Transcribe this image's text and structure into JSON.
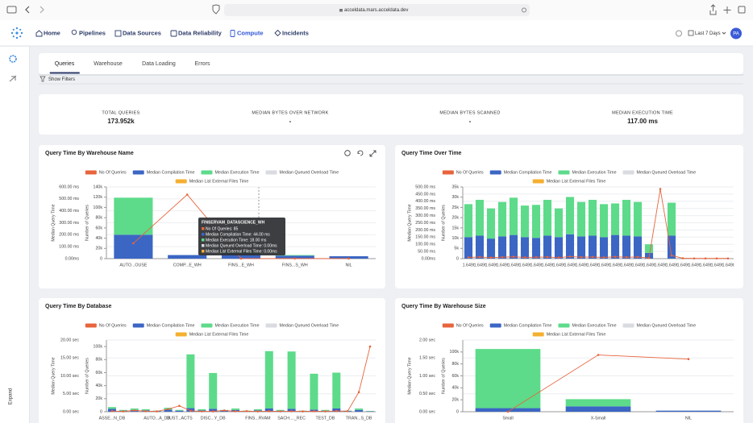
{
  "browser": {
    "url": "acceldata.mars.acceldata.dev"
  },
  "nav": {
    "items": [
      "Home",
      "Pipelines",
      "Data Sources",
      "Data Reliability",
      "Compute",
      "Incidents"
    ],
    "active": 4,
    "date_range": "Last 7 Days",
    "avatar": "PA"
  },
  "sidebar": {
    "expand": "Expand"
  },
  "tabs": {
    "items": [
      "Queries",
      "Warehouse",
      "Data Loading",
      "Errors"
    ],
    "active": 0
  },
  "filters": "Show Filters",
  "kpis": [
    {
      "label": "TOTAL QUERIES",
      "value": "173.952k"
    },
    {
      "label": "MEDIAN BYTES OVER NETWORK",
      "value": "-"
    },
    {
      "label": "MEDIAN BYTES SCANNED",
      "value": "-"
    },
    {
      "label": "MEDIAN EXECUTION TIME",
      "value": "117.00 ms"
    }
  ],
  "charts": [
    {
      "type": "bar",
      "title": "Query Time By Warehouse Name",
      "ylabel": "Median Query Time",
      "y2label": "Number of Queries",
      "categories": [
        "AUTO...OUSE",
        "COMP...E_WH",
        "FINS...E_WH",
        "FINS...S_WH",
        "NIL"
      ],
      "ylim": [
        0,
        600
      ],
      "yticks": [
        {
          "value": 0,
          "label": "0.00ms"
        },
        {
          "value": 100,
          "label": "100.00 ms"
        },
        {
          "value": 200,
          "label": "200.00 ms"
        },
        {
          "value": 300,
          "label": "300.00 ms"
        },
        {
          "value": 400,
          "label": "400.00 ms"
        },
        {
          "value": 500,
          "label": "500.00 ms"
        },
        {
          "value": 600,
          "label": "600.00 ms"
        }
      ],
      "y2lim": [
        0,
        140000
      ],
      "y2ticks": [
        0,
        {
          "value": 20000,
          "label": "20k"
        },
        {
          "value": 40000,
          "label": "40k"
        },
        {
          "value": 60000,
          "label": "60k"
        },
        {
          "value": 80000,
          "label": "80k"
        },
        {
          "value": 100000,
          "label": "100k"
        },
        {
          "value": 120000,
          "label": "120k"
        },
        {
          "value": 140000,
          "label": "140k"
        }
      ],
      "series": [
        {
          "name": "No Of Queries",
          "color": "#e8643c",
          "type": "line",
          "axis": "y2",
          "values": [
            30000,
            125000,
            85,
            200,
            100
          ]
        },
        {
          "name": "Median Compilation Time",
          "color": "#3b66c4",
          "values": [
            200,
            30,
            44,
            25,
            20
          ]
        },
        {
          "name": "Median Execution Time",
          "color": "#5ddb8a",
          "values": [
            310,
            0,
            18,
            5,
            0
          ]
        },
        {
          "name": "Median Queued Overload Time",
          "color": "#d9dbe0",
          "values": [
            0,
            0,
            0,
            0,
            0
          ]
        },
        {
          "name": "Median List External Files Time",
          "color": "#f5b031",
          "values": [
            0,
            0,
            0,
            0,
            0
          ]
        }
      ],
      "tooltip": {
        "title": "FINSERVAM_DATASCIENCE_WH",
        "lines": [
          "No Of Queries: 85",
          "Median Compilation Time: 44.00 ms",
          "Median Execution Time: 18.00 ms",
          "Median Queued Overload Time: 0.00ms",
          "Median List External Files Time: 0.00ms"
        ]
      }
    },
    {
      "type": "bar",
      "title": "Query Time Over Time",
      "ylabel": "Median Query Time",
      "y2label": "Number of Queries",
      "categories": [
        "1.649t",
        "1.649t",
        "1.649t",
        "1.649t",
        "1.649t",
        "1.649t",
        "1.649t",
        "1.649t",
        "1.649t",
        "1.649t",
        "1.649t",
        "1.649t",
        "1.649t",
        "1.649t",
        "1.649t",
        "1.649t",
        "1.649t",
        "1.649t",
        "1.649t",
        "1.649t",
        "1.649t",
        "1.649t",
        "1.649t",
        "1.649t"
      ],
      "ylim": [
        0,
        500
      ],
      "yticks": [
        {
          "value": 0,
          "label": "0.00ms"
        },
        {
          "value": 50,
          "label": "50.00 ms"
        },
        {
          "value": 100,
          "label": "100.00 ms"
        },
        {
          "value": 150,
          "label": "150.00 ms"
        },
        {
          "value": 200,
          "label": "200.00 ms"
        },
        {
          "value": 250,
          "label": "250.00 ms"
        },
        {
          "value": 300,
          "label": "300.00 ms"
        },
        {
          "value": 350,
          "label": "350.00 ms"
        },
        {
          "value": 400,
          "label": "400.00 ms"
        },
        {
          "value": 450,
          "label": "450.00 ms"
        },
        {
          "value": 500,
          "label": "500.00 ms"
        }
      ],
      "y2lim": [
        0,
        35000
      ],
      "y2ticks": [
        0,
        {
          "value": 5000,
          "label": "5k"
        },
        {
          "value": 10000,
          "label": "10k"
        },
        {
          "value": 15000,
          "label": "15k"
        },
        {
          "value": 20000,
          "label": "20k"
        },
        {
          "value": 25000,
          "label": "25k"
        },
        {
          "value": 30000,
          "label": "30k"
        },
        {
          "value": 35000,
          "label": "35k"
        }
      ],
      "series": [
        {
          "name": "No Of Queries",
          "color": "#e8643c",
          "type": "line",
          "axis": "y2",
          "values": [
            600,
            800,
            500,
            700,
            900,
            600,
            700,
            800,
            500,
            1000,
            700,
            800,
            600,
            900,
            700,
            800,
            300,
            34000,
            1500,
            200,
            100,
            100,
            100,
            100
          ]
        },
        {
          "name": "Median Compilation Time",
          "color": "#3b66c4",
          "values": [
            150,
            160,
            140,
            155,
            165,
            150,
            145,
            160,
            150,
            170,
            155,
            160,
            150,
            165,
            160,
            155,
            40,
            0,
            160,
            0,
            0,
            0,
            0,
            0
          ]
        },
        {
          "name": "Median Execution Time",
          "color": "#5ddb8a",
          "values": [
            230,
            250,
            210,
            240,
            260,
            220,
            230,
            250,
            200,
            260,
            240,
            250,
            230,
            220,
            250,
            240,
            60,
            0,
            230,
            0,
            0,
            0,
            0,
            0
          ]
        },
        {
          "name": "Median Queued Overload Time",
          "color": "#d9dbe0",
          "values": [
            0,
            0,
            0,
            0,
            0,
            0,
            0,
            0,
            0,
            0,
            0,
            0,
            0,
            0,
            0,
            0,
            0,
            0,
            0,
            0,
            0,
            0,
            0,
            0
          ]
        },
        {
          "name": "Median List External Files Time",
          "color": "#f5b031",
          "values": [
            0,
            0,
            0,
            0,
            0,
            0,
            0,
            0,
            0,
            0,
            0,
            0,
            0,
            0,
            0,
            0,
            0,
            0,
            0,
            0,
            0,
            0,
            0,
            0
          ]
        }
      ]
    },
    {
      "type": "bar",
      "title": "Query Time By Database",
      "ylabel": "Median Query Time",
      "y2label": "Number of Queries",
      "categories": [
        "ASSE...N_DB",
        null,
        null,
        null,
        "AUTO...A_DB",
        null,
        "CUST...ACTS",
        null,
        null,
        "DISC...Y_DB",
        null,
        null,
        null,
        "FINS...RVAM",
        null,
        null,
        "SACH...._REC",
        null,
        null,
        "TEST_DB",
        null,
        null,
        "TRAN...S_DB",
        null
      ],
      "ylim": [
        0,
        20
      ],
      "yticks": [
        {
          "value": 0,
          "label": "0.00 sec"
        },
        {
          "value": 5,
          "label": "5.00 sec"
        },
        {
          "value": 10,
          "label": "10.00 sec"
        },
        {
          "value": 15,
          "label": "15.00 sec"
        },
        {
          "value": 20,
          "label": "20.00 sec"
        }
      ],
      "y2lim": [
        0,
        110000
      ],
      "y2ticks": [
        0,
        {
          "value": 20000,
          "label": "20k"
        },
        {
          "value": 40000,
          "label": "40k"
        },
        {
          "value": 60000,
          "label": "60k"
        },
        {
          "value": 80000,
          "label": "80k"
        },
        {
          "value": 100000,
          "label": "100k"
        }
      ],
      "series": [
        {
          "name": "No Of Queries",
          "color": "#e8643c",
          "type": "line",
          "axis": "y2",
          "values": [
            1000,
            500,
            2000,
            800,
            600,
            4000,
            9000,
            1500,
            600,
            500,
            2000,
            700,
            900,
            500,
            800,
            600,
            700,
            500,
            800,
            600,
            1200,
            900,
            30000,
            100000
          ]
        },
        {
          "name": "Median Compilation Time",
          "color": "#3b66c4",
          "values": [
            0.8,
            0.3,
            0.5,
            0.4,
            0.2,
            0.6,
            0.3,
            1.0,
            0.4,
            0.8,
            0.3,
            0.5,
            0.2,
            0.4,
            0.9,
            0.3,
            0.8,
            0.2,
            0.6,
            0.3,
            0.9,
            0.2,
            0.5,
            0.1
          ]
        },
        {
          "name": "Median Execution Time",
          "color": "#5ddb8a",
          "values": [
            0.5,
            0.2,
            0.4,
            0.3,
            0.1,
            0.5,
            0.2,
            15,
            0.3,
            10,
            0.2,
            0.4,
            0.1,
            0.3,
            16,
            0.2,
            16,
            0.1,
            10,
            0.2,
            10,
            0.1,
            0.4,
            0.1
          ]
        },
        {
          "name": "Median Queued Overload Time",
          "color": "#d9dbe0",
          "values": [
            0,
            0,
            0,
            0,
            0,
            0,
            0,
            0,
            0,
            0,
            0,
            0,
            0,
            0,
            0,
            0,
            0,
            0,
            0,
            0,
            0,
            0,
            0,
            0
          ]
        },
        {
          "name": "Median List External Files Time",
          "color": "#f5b031",
          "values": [
            0,
            0,
            0,
            0,
            0,
            0,
            0,
            0,
            0,
            0,
            0,
            0,
            0,
            0,
            0,
            0,
            0,
            0,
            0,
            0,
            0,
            0,
            0,
            0
          ]
        }
      ]
    },
    {
      "type": "bar",
      "title": "Query Time By Warehouse Size",
      "ylabel": "Median Query Time",
      "y2label": "Number of Queries",
      "categories": [
        "Small",
        "X-Small",
        "NIL"
      ],
      "ylim": [
        0,
        2
      ],
      "yticks": [
        {
          "value": 0,
          "label": "0.00 sec"
        },
        {
          "value": 0.5,
          "label": "0.50 sec"
        },
        {
          "value": 1,
          "label": "1.00 sec"
        },
        {
          "value": 1.5,
          "label": "1.50 sec"
        },
        {
          "value": 2,
          "label": "2.00 sec"
        }
      ],
      "y2lim": [
        0,
        120000
      ],
      "y2ticks": [
        0,
        {
          "value": 20000,
          "label": "20k"
        },
        {
          "value": 40000,
          "label": "40k"
        },
        {
          "value": 60000,
          "label": "60k"
        },
        {
          "value": 80000,
          "label": "80k"
        },
        {
          "value": 100000,
          "label": "100k"
        }
      ],
      "series": [
        {
          "name": "No Of Queries",
          "color": "#e8643c",
          "type": "line",
          "axis": "y2",
          "values": [
            0,
            95000,
            88000
          ]
        },
        {
          "name": "Median Compilation Time",
          "color": "#3b66c4",
          "values": [
            0.1,
            0.15,
            0.03
          ]
        },
        {
          "name": "Median Execution Time",
          "color": "#5ddb8a",
          "values": [
            1.65,
            0.2,
            0
          ]
        },
        {
          "name": "Median Queued Overload Time",
          "color": "#d9dbe0",
          "values": [
            0,
            0,
            0
          ]
        },
        {
          "name": "Median List External Files Time",
          "color": "#f5b031",
          "values": [
            0,
            0,
            0
          ]
        }
      ]
    }
  ]
}
